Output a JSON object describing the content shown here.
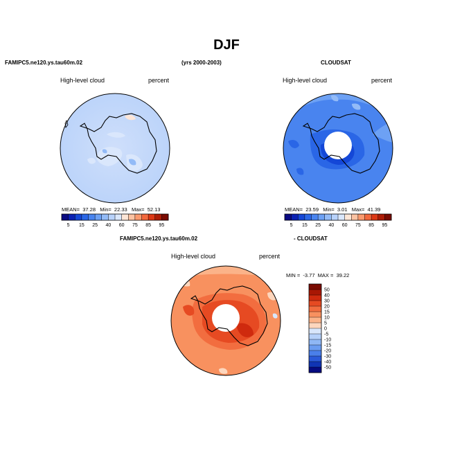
{
  "page": {
    "title": "DJF",
    "case_name": "FAMIPC5.ne120.ys.tau60m.02",
    "years": "(yrs 2000-2003)",
    "obs_name": "CLOUDSAT",
    "diff_suffix": "- CLOUDSAT"
  },
  "chart_data": [
    {
      "type": "heatmap",
      "projection": "south-polar-stereographic",
      "panel": "model",
      "variable": "High-level cloud",
      "units": "percent",
      "stats": {
        "mean_label": "MEAN=",
        "mean": "37.28",
        "min_label": "Min=",
        "min": "22.33",
        "max_label": "Max=",
        "max": "52.13"
      },
      "colorbar_levels": [
        5,
        10,
        15,
        20,
        25,
        30,
        40,
        50,
        60,
        70,
        75,
        80,
        85,
        90,
        95
      ],
      "colorbar_tick_labels": [
        "5",
        "15",
        "25",
        "40",
        "60",
        "75",
        "85",
        "95"
      ],
      "colors": [
        "#0a0a82",
        "#0a21b3",
        "#1447d7",
        "#2a66e6",
        "#4984ef",
        "#6da1f4",
        "#93bbf7",
        "#b8d2fa",
        "#dae7fc",
        "#fde6d7",
        "#fcc3a3",
        "#fa9a6f",
        "#f2683d",
        "#dc3815",
        "#ad1c06",
        "#7a0b02"
      ]
    },
    {
      "type": "heatmap",
      "projection": "south-polar-stereographic",
      "panel": "observations",
      "variable": "High-level cloud",
      "units": "percent",
      "stats": {
        "mean_label": "MEAN=",
        "mean": "23.59",
        "min_label": "Min=",
        "min": "3.01",
        "max_label": "Max=",
        "max": "41.39"
      },
      "colorbar_levels": [
        5,
        10,
        15,
        20,
        25,
        30,
        40,
        50,
        60,
        70,
        75,
        80,
        85,
        90,
        95
      ],
      "colorbar_tick_labels": [
        "5",
        "15",
        "25",
        "40",
        "60",
        "75",
        "85",
        "95"
      ]
    },
    {
      "type": "heatmap",
      "projection": "south-polar-stereographic",
      "panel": "difference",
      "variable": "High-level cloud",
      "units": "percent",
      "stats": {
        "min_label": "MIN =",
        "min": "-3.77",
        "max_label": "MAX =",
        "max": "39.22"
      },
      "colorbar_labels": [
        "50",
        "40",
        "30",
        "20",
        "15",
        "10",
        "5",
        "0",
        "-5",
        "-10",
        "-15",
        "-20",
        "-30",
        "-40",
        "-50"
      ],
      "colors": [
        "#7a0b02",
        "#a81704",
        "#cf2a0e",
        "#e64a22",
        "#f26d3f",
        "#f8915f",
        "#fbb389",
        "#fdd6bd",
        "#d8e6fb",
        "#b5d0f9",
        "#8fb7f5",
        "#6a9cf1",
        "#4a7fea",
        "#2a59d8",
        "#1034b4",
        "#060b80"
      ]
    }
  ]
}
